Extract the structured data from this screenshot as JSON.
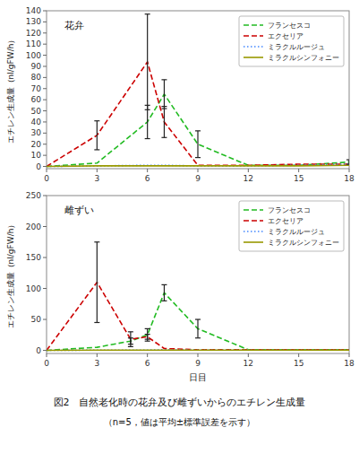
{
  "chart_data": [
    {
      "type": "line",
      "title": "花弁",
      "ylabel": "エチレン生成量（nl/gFW/h）",
      "x": [
        0,
        3,
        6,
        7,
        9,
        12,
        15,
        18
      ],
      "xlim": [
        0,
        18
      ],
      "xticks": [
        0,
        3,
        6,
        9,
        12,
        15,
        18
      ],
      "ylim": [
        -2,
        140
      ],
      "yticks": [
        0,
        10,
        20,
        30,
        40,
        50,
        60,
        70,
        80,
        90,
        100,
        110,
        120,
        130,
        140
      ],
      "grid": false,
      "legend": "upper right",
      "series": [
        {
          "name": "フランセスコ",
          "color": "#22bb22",
          "line_style": "dashed",
          "values": [
            0,
            3,
            40,
            65,
            20,
            1,
            1,
            4
          ],
          "yerr": [
            0,
            0,
            15,
            13,
            12,
            0,
            0,
            2
          ]
        },
        {
          "name": "エクセリア",
          "color": "#cc0000",
          "line_style": "dashed",
          "values": [
            0,
            28,
            94,
            40,
            1,
            1,
            2,
            2
          ],
          "yerr": [
            0,
            13,
            43,
            14,
            0,
            0,
            0,
            0
          ]
        },
        {
          "name": "ミラクルルージュ",
          "color": "#4488ff",
          "line_style": "dotted",
          "values": [
            0,
            0.5,
            1,
            1,
            0.5,
            0.5,
            1,
            2
          ],
          "yerr": [
            0,
            0,
            0,
            0,
            0,
            0,
            0,
            0
          ]
        },
        {
          "name": "ミラクルシンフォニー",
          "color": "#999900",
          "line_style": "solid",
          "values": [
            0,
            0.5,
            0.5,
            0.5,
            0.5,
            0.5,
            0.5,
            1
          ],
          "yerr": [
            0,
            0,
            0,
            0,
            0,
            0,
            0,
            0
          ]
        }
      ]
    },
    {
      "type": "line",
      "title": "雌ずい",
      "ylabel": "エチレン生成量（nl/gFW/h）",
      "xlabel": "日目",
      "annotations": [
        "図2　自然老化時の花弁及び雌ずいからのエチレン生成量",
        "（n=5，値は平均±標準誤差を示す）"
      ],
      "x": [
        0,
        3,
        5,
        6,
        7,
        9,
        12,
        15,
        18
      ],
      "xlim": [
        0,
        18
      ],
      "xticks": [
        0,
        3,
        6,
        9,
        12,
        15,
        18
      ],
      "ylim": [
        -5,
        250
      ],
      "yticks": [
        0,
        50,
        100,
        150,
        200,
        250
      ],
      "grid": false,
      "legend": "upper right",
      "series": [
        {
          "name": "フランセスコ",
          "color": "#22bb22",
          "line_style": "dashed",
          "values": [
            0,
            5,
            15,
            25,
            93,
            35,
            1,
            1,
            1
          ],
          "yerr": [
            0,
            0,
            5,
            10,
            13,
            15,
            0,
            0,
            0
          ]
        },
        {
          "name": "エクセリア",
          "color": "#cc0000",
          "line_style": "dashed",
          "values": [
            0,
            110,
            18,
            22,
            3,
            1,
            1,
            1,
            1
          ],
          "yerr": [
            0,
            65,
            12,
            4,
            0,
            0,
            0,
            0,
            0
          ]
        },
        {
          "name": "ミラクルルージュ",
          "color": "#4488ff",
          "line_style": "dotted",
          "values": [
            0,
            0.5,
            0.5,
            0.5,
            1,
            0.5,
            0.5,
            0.5,
            0.5
          ],
          "yerr": [
            0,
            0,
            0,
            0,
            0,
            0,
            0,
            0,
            0
          ]
        },
        {
          "name": "ミラクルシンフォニー",
          "color": "#999900",
          "line_style": "solid",
          "values": [
            0,
            0.5,
            0.5,
            0.5,
            0.5,
            0.5,
            0.5,
            0.5,
            0.5
          ],
          "yerr": [
            0,
            0,
            0,
            0,
            0,
            0,
            0,
            0,
            0
          ]
        }
      ]
    }
  ]
}
